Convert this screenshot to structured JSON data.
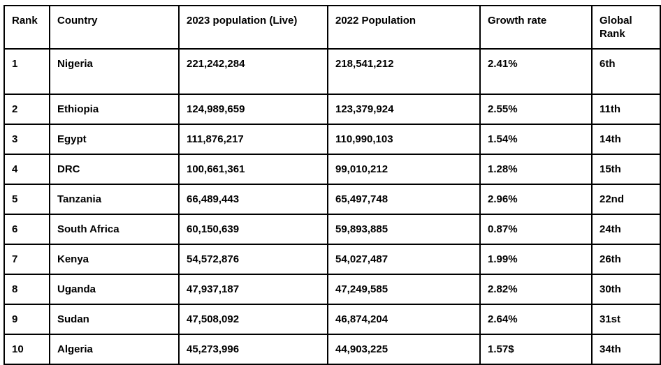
{
  "colors": {
    "border": "#000000",
    "text": "#000000",
    "background": "#ffffff"
  },
  "table": {
    "columns": [
      {
        "key": "rank",
        "label": "Rank"
      },
      {
        "key": "country",
        "label": "Country"
      },
      {
        "key": "pop2023",
        "label": "2023 population (Live)"
      },
      {
        "key": "pop2022",
        "label": "2022 Population"
      },
      {
        "key": "growth",
        "label": "Growth rate"
      },
      {
        "key": "global_rank",
        "label": "Global Rank"
      }
    ],
    "rows": [
      {
        "rank": "1",
        "country": "Nigeria",
        "pop2023": "221,242,284",
        "pop2022": "218,541,212",
        "growth": "2.41%",
        "global_rank": "6th"
      },
      {
        "rank": "2",
        "country": "Ethiopia",
        "pop2023": "124,989,659",
        "pop2022": "123,379,924",
        "growth": "2.55%",
        "global_rank": "11th"
      },
      {
        "rank": "3",
        "country": "Egypt",
        "pop2023": "111,876,217",
        "pop2022": "110,990,103",
        "growth": "1.54%",
        "global_rank": "14th"
      },
      {
        "rank": "4",
        "country": "DRC",
        "pop2023": "100,661,361",
        "pop2022": "99,010,212",
        "growth": "1.28%",
        "global_rank": "15th"
      },
      {
        "rank": "5",
        "country": "Tanzania",
        "pop2023": "66,489,443",
        "pop2022": "65,497,748",
        "growth": "2.96%",
        "global_rank": "22nd"
      },
      {
        "rank": "6",
        "country": "South Africa",
        "pop2023": "60,150,639",
        "pop2022": "59,893,885",
        "growth": "0.87%",
        "global_rank": "24th"
      },
      {
        "rank": "7",
        "country": "Kenya",
        "pop2023": "54,572,876",
        "pop2022": "54,027,487",
        "growth": "1.99%",
        "global_rank": "26th"
      },
      {
        "rank": "8",
        "country": "Uganda",
        "pop2023": "47,937,187",
        "pop2022": "47,249,585",
        "growth": "2.82%",
        "global_rank": "30th"
      },
      {
        "rank": "9",
        "country": "Sudan",
        "pop2023": "47,508,092",
        "pop2022": "46,874,204",
        "growth": "2.64%",
        "global_rank": "31st"
      },
      {
        "rank": "10",
        "country": "Algeria",
        "pop2023": "45,273,996",
        "pop2022": "44,903,225",
        "growth": "1.57$",
        "global_rank": "34th"
      }
    ]
  }
}
